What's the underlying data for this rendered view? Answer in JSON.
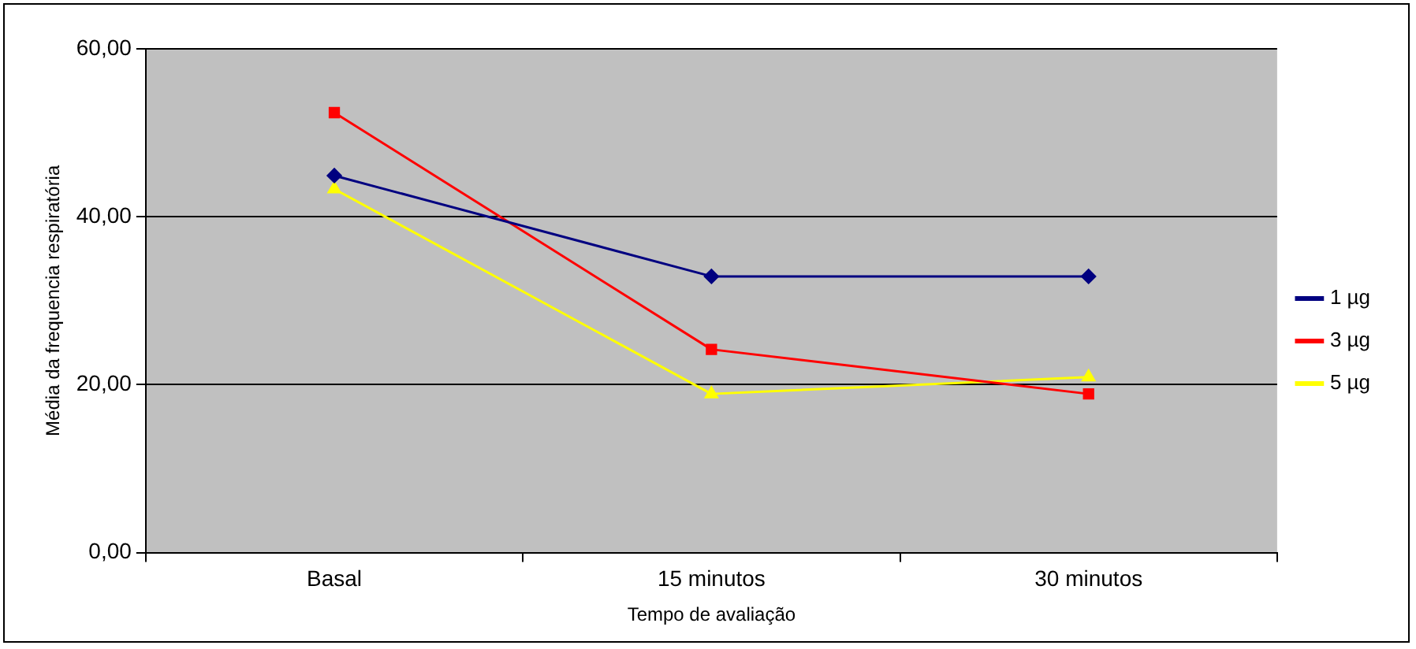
{
  "chart_data": {
    "type": "line",
    "xlabel": "Tempo de avaliação",
    "ylabel": "Média da frequencia respiratória",
    "categories": [
      "Basal",
      "15 minutos",
      "30 minutos"
    ],
    "series": [
      {
        "name": "1 µg",
        "color": "#000080",
        "values": [
          44.9,
          32.9,
          32.9
        ],
        "marker": "diamond"
      },
      {
        "name": "3 µg",
        "color": "#ff0000",
        "values": [
          52.4,
          24.2,
          18.9
        ],
        "marker": "square"
      },
      {
        "name": "5 µg",
        "color": "#ffff00",
        "values": [
          43.3,
          18.9,
          20.9
        ],
        "marker": "triangle"
      }
    ],
    "ylim": [
      0,
      60
    ],
    "yticks": [
      {
        "value": 0,
        "label": "0,00"
      },
      {
        "value": 20,
        "label": "20,00"
      },
      {
        "value": 40,
        "label": "40,00"
      },
      {
        "value": 60,
        "label": "60,00"
      }
    ],
    "grid": "y",
    "legend": "right"
  }
}
